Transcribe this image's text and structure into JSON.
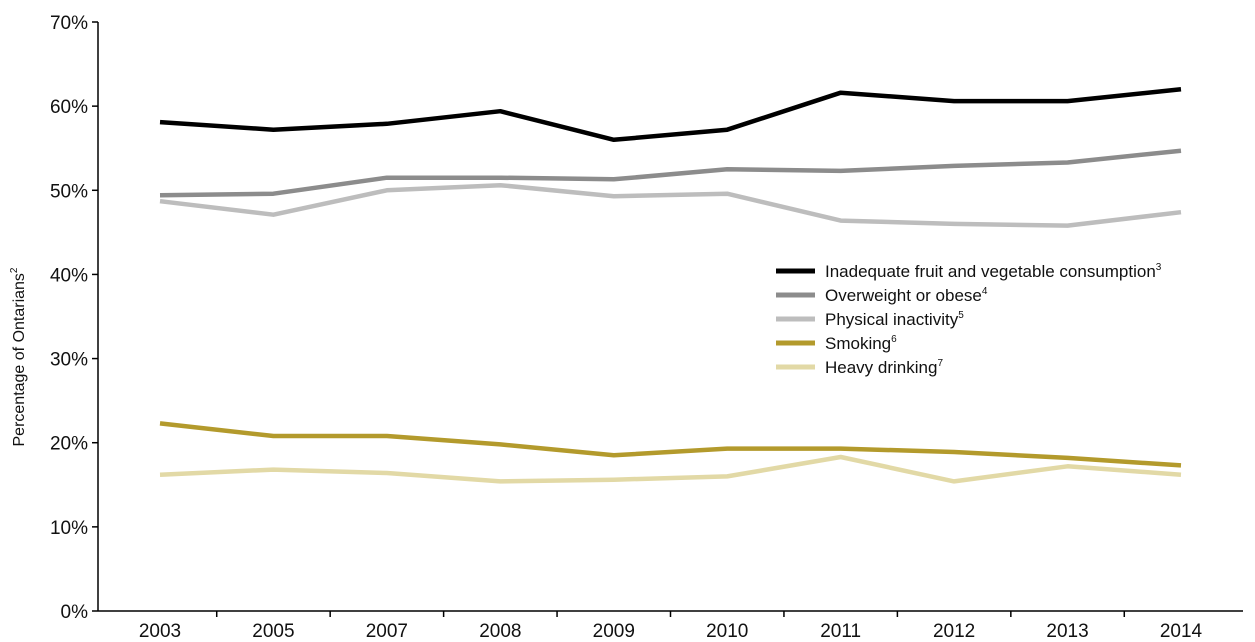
{
  "chart_data": {
    "type": "line",
    "title": "",
    "xlabel": "",
    "ylabel": "Percentage of Ontarians",
    "ylabel_sup": "2",
    "x": [
      "2003",
      "2005",
      "2007",
      "2008",
      "2009",
      "2010",
      "2011",
      "2012",
      "2013",
      "2014"
    ],
    "ylim": [
      0,
      70
    ],
    "yticks": [
      0,
      10,
      20,
      30,
      40,
      50,
      60,
      70
    ],
    "ytick_labels": [
      "0%",
      "10%",
      "20%",
      "30%",
      "40%",
      "50%",
      "60%",
      "70%"
    ],
    "grid": false,
    "legend_position": "right-middle",
    "series": [
      {
        "name": "Inadequate fruit and vegetable consumption",
        "sup": "3",
        "color": "#000000",
        "values": [
          58.1,
          57.2,
          57.9,
          59.4,
          56.0,
          57.2,
          61.6,
          60.6,
          60.6,
          62.0
        ]
      },
      {
        "name": "Overweight or obese",
        "sup": "4",
        "color": "#8c8c8c",
        "values": [
          49.4,
          49.6,
          51.5,
          51.5,
          51.3,
          52.5,
          52.3,
          52.9,
          53.3,
          54.7
        ]
      },
      {
        "name": "Physical inactivity",
        "sup": "5",
        "color": "#bdbdbd",
        "values": [
          48.7,
          47.1,
          50.0,
          50.6,
          49.3,
          49.6,
          46.4,
          46.0,
          45.8,
          47.4
        ]
      },
      {
        "name": "Smoking",
        "sup": "6",
        "color": "#b39a2c",
        "values": [
          22.3,
          20.8,
          20.8,
          19.8,
          18.5,
          19.3,
          19.3,
          18.9,
          18.2,
          17.3
        ]
      },
      {
        "name": "Heavy drinking",
        "sup": "7",
        "color": "#e2d9a6",
        "values": [
          16.2,
          16.8,
          16.4,
          15.4,
          15.6,
          16.0,
          18.3,
          15.4,
          17.2,
          16.2
        ]
      }
    ]
  }
}
